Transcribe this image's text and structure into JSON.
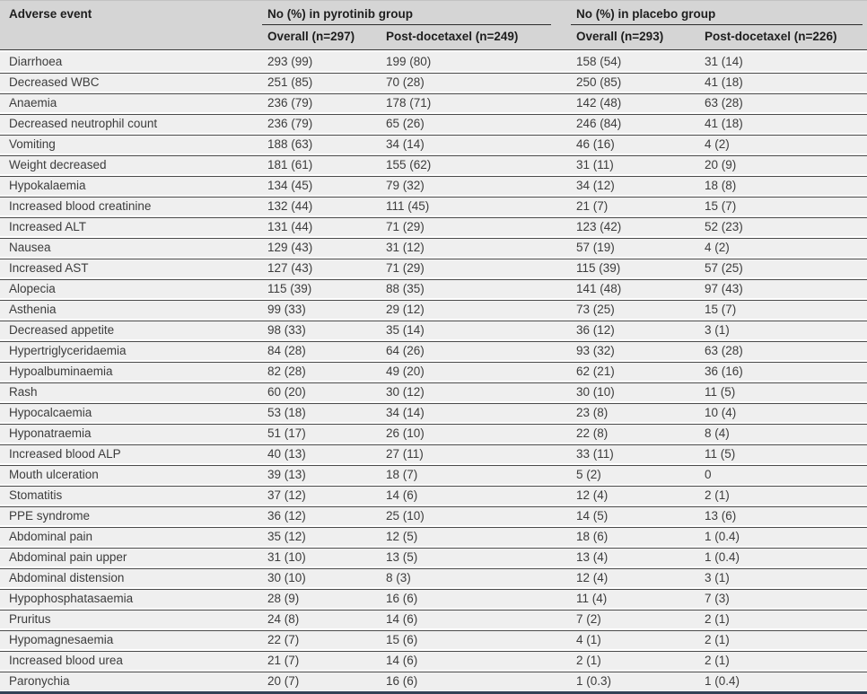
{
  "colors": {
    "header_background": "#d5d5d5",
    "row_background": "#efefef",
    "row_separator": "#4a4a4a",
    "header_rule": "#2b2b2b",
    "bottom_rule": "#344257",
    "body_text": "#3c3c3c",
    "header_text": "#1e1e1e"
  },
  "table": {
    "col1_header": "Adverse event",
    "groups": [
      {
        "label": "No (%) in pyrotinib group",
        "columns": [
          "Overall (n=297)",
          "Post-docetaxel (n=249)"
        ]
      },
      {
        "label": "No (%) in placebo group",
        "columns": [
          "Overall (n=293)",
          "Post-docetaxel (n=226)"
        ]
      }
    ],
    "rows": [
      {
        "event": "Diarrhoea",
        "values": [
          "293 (99)",
          "199 (80)",
          "158 (54)",
          "31 (14)"
        ]
      },
      {
        "event": "Decreased WBC",
        "values": [
          "251 (85)",
          "70 (28)",
          "250 (85)",
          "41 (18)"
        ]
      },
      {
        "event": "Anaemia",
        "values": [
          "236 (79)",
          "178 (71)",
          "142 (48)",
          "63 (28)"
        ]
      },
      {
        "event": "Decreased neutrophil count",
        "values": [
          "236 (79)",
          "65 (26)",
          "246 (84)",
          "41 (18)"
        ]
      },
      {
        "event": "Vomiting",
        "values": [
          "188 (63)",
          "34 (14)",
          "46 (16)",
          "4 (2)"
        ]
      },
      {
        "event": "Weight decreased",
        "values": [
          "181 (61)",
          "155 (62)",
          "31 (11)",
          "20 (9)"
        ]
      },
      {
        "event": "Hypokalaemia",
        "values": [
          "134 (45)",
          "79 (32)",
          "34 (12)",
          "18 (8)"
        ]
      },
      {
        "event": "Increased blood creatinine",
        "values": [
          "132 (44)",
          "111 (45)",
          "21 (7)",
          "15 (7)"
        ]
      },
      {
        "event": "Increased ALT",
        "values": [
          "131 (44)",
          "71 (29)",
          "123 (42)",
          "52 (23)"
        ]
      },
      {
        "event": "Nausea",
        "values": [
          "129 (43)",
          "31 (12)",
          "57 (19)",
          "4 (2)"
        ]
      },
      {
        "event": "Increased AST",
        "values": [
          "127 (43)",
          "71 (29)",
          "115 (39)",
          "57 (25)"
        ]
      },
      {
        "event": "Alopecia",
        "values": [
          "115 (39)",
          "88 (35)",
          "141 (48)",
          "97 (43)"
        ]
      },
      {
        "event": "Asthenia",
        "values": [
          "99 (33)",
          "29 (12)",
          "73 (25)",
          "15 (7)"
        ]
      },
      {
        "event": "Decreased appetite",
        "values": [
          "98 (33)",
          "35 (14)",
          "36 (12)",
          "3 (1)"
        ]
      },
      {
        "event": "Hypertriglyceridaemia",
        "values": [
          "84 (28)",
          "64 (26)",
          "93 (32)",
          "63 (28)"
        ]
      },
      {
        "event": "Hypoalbuminaemia",
        "values": [
          "82 (28)",
          "49 (20)",
          "62 (21)",
          "36 (16)"
        ]
      },
      {
        "event": "Rash",
        "values": [
          "60 (20)",
          "30 (12)",
          "30 (10)",
          "11 (5)"
        ]
      },
      {
        "event": "Hypocalcaemia",
        "values": [
          "53 (18)",
          "34 (14)",
          "23 (8)",
          "10 (4)"
        ]
      },
      {
        "event": "Hyponatraemia",
        "values": [
          "51 (17)",
          "26 (10)",
          "22 (8)",
          "8 (4)"
        ]
      },
      {
        "event": "Increased blood ALP",
        "values": [
          "40 (13)",
          "27 (11)",
          "33 (11)",
          "11 (5)"
        ]
      },
      {
        "event": "Mouth ulceration",
        "values": [
          "39 (13)",
          "18 (7)",
          "5 (2)",
          "0"
        ]
      },
      {
        "event": "Stomatitis",
        "values": [
          "37 (12)",
          "14 (6)",
          "12 (4)",
          "2 (1)"
        ]
      },
      {
        "event": "PPE syndrome",
        "values": [
          "36 (12)",
          "25 (10)",
          "14 (5)",
          "13 (6)"
        ]
      },
      {
        "event": "Abdominal pain",
        "values": [
          "35 (12)",
          "12 (5)",
          "18 (6)",
          "1 (0.4)"
        ]
      },
      {
        "event": "Abdominal pain upper",
        "values": [
          "31 (10)",
          "13 (5)",
          "13 (4)",
          "1 (0.4)"
        ]
      },
      {
        "event": "Abdominal distension",
        "values": [
          "30 (10)",
          "8 (3)",
          "12 (4)",
          "3 (1)"
        ]
      },
      {
        "event": "Hypophosphatasaemia",
        "values": [
          "28 (9)",
          "16 (6)",
          "11 (4)",
          "7 (3)"
        ]
      },
      {
        "event": "Pruritus",
        "values": [
          "24 (8)",
          "14 (6)",
          "7 (2)",
          "2 (1)"
        ]
      },
      {
        "event": "Hypomagnesaemia",
        "values": [
          "22 (7)",
          "15 (6)",
          "4 (1)",
          "2 (1)"
        ]
      },
      {
        "event": "Increased blood urea",
        "values": [
          "21 (7)",
          "14 (6)",
          "2 (1)",
          "2 (1)"
        ]
      },
      {
        "event": "Paronychia",
        "values": [
          "20 (7)",
          "16 (6)",
          "1 (0.3)",
          "1 (0.4)"
        ]
      }
    ]
  }
}
